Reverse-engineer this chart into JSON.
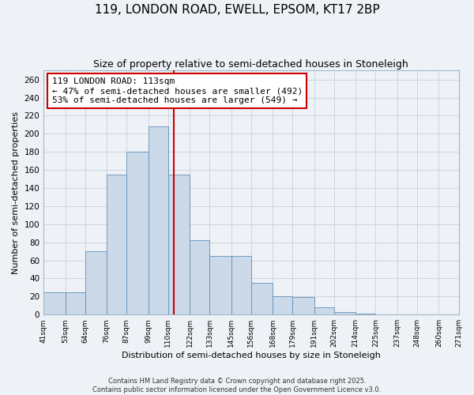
{
  "title": "119, LONDON ROAD, EWELL, EPSOM, KT17 2BP",
  "subtitle": "Size of property relative to semi-detached houses in Stoneleigh",
  "xlabel": "Distribution of semi-detached houses by size in Stoneleigh",
  "ylabel": "Number of semi-detached properties",
  "bin_edges": [
    41,
    53,
    64,
    76,
    87,
    99,
    110,
    122,
    133,
    145,
    156,
    168,
    179,
    191,
    202,
    214,
    225,
    237,
    248,
    260,
    271
  ],
  "bar_heights": [
    25,
    25,
    70,
    155,
    180,
    208,
    155,
    82,
    65,
    65,
    35,
    20,
    19,
    8,
    3,
    1,
    0,
    0,
    0,
    0
  ],
  "bar_color": "#ccd9e8",
  "bar_edge_color": "#6090b8",
  "vline_x": 113,
  "vline_color": "#cc0000",
  "annotation_title": "119 LONDON ROAD: 113sqm",
  "annotation_line1": "← 47% of semi-detached houses are smaller (492)",
  "annotation_line2": "53% of semi-detached houses are larger (549) →",
  "annotation_box_color": "#ffffff",
  "annotation_box_edge_color": "#cc0000",
  "tick_labels": [
    "41sqm",
    "53sqm",
    "64sqm",
    "76sqm",
    "87sqm",
    "99sqm",
    "110sqm",
    "122sqm",
    "133sqm",
    "145sqm",
    "156sqm",
    "168sqm",
    "179sqm",
    "191sqm",
    "202sqm",
    "214sqm",
    "225sqm",
    "237sqm",
    "248sqm",
    "260sqm",
    "271sqm"
  ],
  "ylim": [
    0,
    270
  ],
  "yticks": [
    0,
    20,
    40,
    60,
    80,
    100,
    120,
    140,
    160,
    180,
    200,
    220,
    240,
    260
  ],
  "background_color": "#eef2f7",
  "grid_color": "#c8d0dc",
  "footer_line1": "Contains HM Land Registry data © Crown copyright and database right 2025.",
  "footer_line2": "Contains public sector information licensed under the Open Government Licence v3.0.",
  "title_fontsize": 11,
  "subtitle_fontsize": 9,
  "axis_label_fontsize": 8,
  "tick_fontsize": 6.5,
  "annotation_fontsize": 8,
  "footer_fontsize": 6,
  "figwidth": 6.0,
  "figheight": 5.0,
  "dpi": 100
}
